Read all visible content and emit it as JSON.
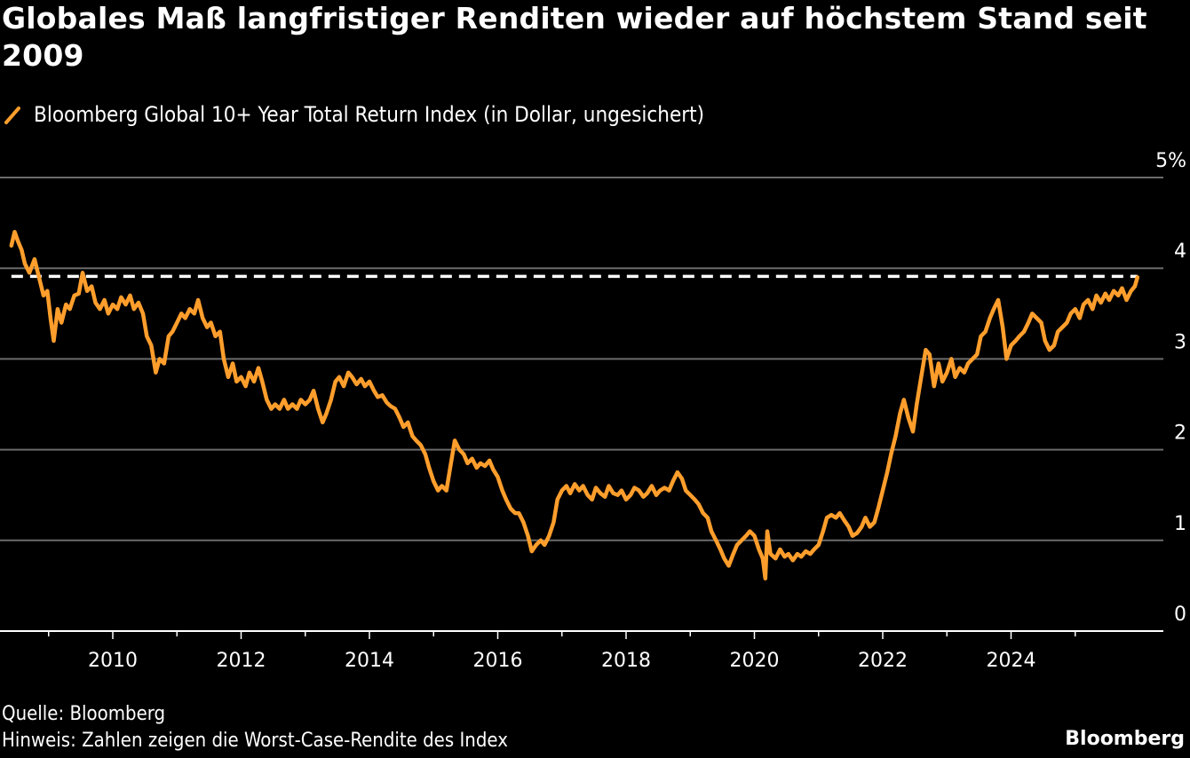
{
  "title": "Globales Maß langfristiger Renditen wieder auf höchstem Stand seit 2009",
  "legend": {
    "label": "Bloomberg Global 10+ Year Total Return Index (in Dollar, ungesichert)",
    "color": "#FF9E2C"
  },
  "footer": {
    "source": "Quelle: Bloomberg",
    "note": "Hinweis: Zahlen zeigen die Worst-Case-Rendite des Index",
    "brand": "Bloomberg"
  },
  "chart_data": {
    "type": "line",
    "title": "Globales Maß langfristiger Renditen wieder auf höchstem Stand seit 2009",
    "xlabel": "",
    "ylabel": "",
    "xlim": [
      2008.42,
      2026.0
    ],
    "ylim": [
      0,
      5
    ],
    "y_unit": "%",
    "y_ticks": [
      0,
      1,
      2,
      3,
      4,
      5
    ],
    "y_tick_labels": [
      "0",
      "1",
      "2",
      "3",
      "4",
      "5%"
    ],
    "x_ticks_labeled": [
      2010,
      2012,
      2014,
      2016,
      2018,
      2020,
      2022,
      2024
    ],
    "x_ticks_minor": [
      2009,
      2011,
      2013,
      2015,
      2017,
      2019,
      2021,
      2023,
      2025
    ],
    "grid": true,
    "y_axis_position": "right",
    "legend_position": "top-left",
    "reference_line": {
      "value": 3.91,
      "style": "dashed",
      "color": "#FFFFFF",
      "from": 2008.42,
      "to": 2025.97
    },
    "series": [
      {
        "name": "Bloomberg Global 10+ Year Total Return Index (in Dollar, ungesichert)",
        "color": "#FF9E2C",
        "points": [
          [
            2008.42,
            4.25
          ],
          [
            2008.47,
            4.4
          ],
          [
            2008.52,
            4.3
          ],
          [
            2008.58,
            4.2
          ],
          [
            2008.63,
            4.05
          ],
          [
            2008.7,
            3.95
          ],
          [
            2008.78,
            4.1
          ],
          [
            2008.85,
            3.9
          ],
          [
            2008.92,
            3.7
          ],
          [
            2008.98,
            3.75
          ],
          [
            2009.03,
            3.45
          ],
          [
            2009.08,
            3.2
          ],
          [
            2009.14,
            3.55
          ],
          [
            2009.2,
            3.4
          ],
          [
            2009.27,
            3.6
          ],
          [
            2009.33,
            3.55
          ],
          [
            2009.4,
            3.7
          ],
          [
            2009.47,
            3.72
          ],
          [
            2009.53,
            3.95
          ],
          [
            2009.6,
            3.75
          ],
          [
            2009.67,
            3.8
          ],
          [
            2009.73,
            3.62
          ],
          [
            2009.8,
            3.55
          ],
          [
            2009.87,
            3.65
          ],
          [
            2009.93,
            3.5
          ],
          [
            2010.0,
            3.6
          ],
          [
            2010.07,
            3.55
          ],
          [
            2010.13,
            3.68
          ],
          [
            2010.2,
            3.6
          ],
          [
            2010.27,
            3.7
          ],
          [
            2010.33,
            3.55
          ],
          [
            2010.4,
            3.62
          ],
          [
            2010.47,
            3.5
          ],
          [
            2010.53,
            3.25
          ],
          [
            2010.6,
            3.15
          ],
          [
            2010.67,
            2.85
          ],
          [
            2010.73,
            3.0
          ],
          [
            2010.8,
            2.95
          ],
          [
            2010.87,
            3.25
          ],
          [
            2010.93,
            3.3
          ],
          [
            2011.0,
            3.4
          ],
          [
            2011.07,
            3.5
          ],
          [
            2011.13,
            3.45
          ],
          [
            2011.2,
            3.55
          ],
          [
            2011.27,
            3.5
          ],
          [
            2011.33,
            3.65
          ],
          [
            2011.4,
            3.45
          ],
          [
            2011.47,
            3.35
          ],
          [
            2011.53,
            3.4
          ],
          [
            2011.6,
            3.25
          ],
          [
            2011.67,
            3.3
          ],
          [
            2011.73,
            3.0
          ],
          [
            2011.8,
            2.8
          ],
          [
            2011.87,
            2.95
          ],
          [
            2011.93,
            2.75
          ],
          [
            2012.0,
            2.8
          ],
          [
            2012.07,
            2.7
          ],
          [
            2012.13,
            2.85
          ],
          [
            2012.2,
            2.75
          ],
          [
            2012.27,
            2.9
          ],
          [
            2012.33,
            2.75
          ],
          [
            2012.4,
            2.55
          ],
          [
            2012.47,
            2.45
          ],
          [
            2012.53,
            2.5
          ],
          [
            2012.6,
            2.45
          ],
          [
            2012.67,
            2.55
          ],
          [
            2012.73,
            2.45
          ],
          [
            2012.8,
            2.5
          ],
          [
            2012.87,
            2.45
          ],
          [
            2012.93,
            2.55
          ],
          [
            2013.0,
            2.5
          ],
          [
            2013.07,
            2.55
          ],
          [
            2013.13,
            2.65
          ],
          [
            2013.2,
            2.45
          ],
          [
            2013.27,
            2.3
          ],
          [
            2013.33,
            2.4
          ],
          [
            2013.4,
            2.55
          ],
          [
            2013.47,
            2.75
          ],
          [
            2013.53,
            2.8
          ],
          [
            2013.6,
            2.7
          ],
          [
            2013.67,
            2.85
          ],
          [
            2013.73,
            2.8
          ],
          [
            2013.8,
            2.72
          ],
          [
            2013.87,
            2.78
          ],
          [
            2013.93,
            2.7
          ],
          [
            2014.0,
            2.75
          ],
          [
            2014.07,
            2.65
          ],
          [
            2014.13,
            2.58
          ],
          [
            2014.2,
            2.6
          ],
          [
            2014.27,
            2.52
          ],
          [
            2014.33,
            2.48
          ],
          [
            2014.4,
            2.45
          ],
          [
            2014.47,
            2.35
          ],
          [
            2014.53,
            2.25
          ],
          [
            2014.6,
            2.3
          ],
          [
            2014.67,
            2.15
          ],
          [
            2014.73,
            2.1
          ],
          [
            2014.8,
            2.05
          ],
          [
            2014.87,
            1.95
          ],
          [
            2014.93,
            1.8
          ],
          [
            2015.0,
            1.65
          ],
          [
            2015.07,
            1.55
          ],
          [
            2015.13,
            1.6
          ],
          [
            2015.2,
            1.55
          ],
          [
            2015.27,
            1.85
          ],
          [
            2015.33,
            2.1
          ],
          [
            2015.4,
            2.0
          ],
          [
            2015.47,
            1.95
          ],
          [
            2015.53,
            1.85
          ],
          [
            2015.6,
            1.9
          ],
          [
            2015.67,
            1.8
          ],
          [
            2015.73,
            1.85
          ],
          [
            2015.8,
            1.82
          ],
          [
            2015.87,
            1.88
          ],
          [
            2015.93,
            1.78
          ],
          [
            2016.0,
            1.7
          ],
          [
            2016.07,
            1.55
          ],
          [
            2016.13,
            1.45
          ],
          [
            2016.2,
            1.35
          ],
          [
            2016.27,
            1.3
          ],
          [
            2016.33,
            1.3
          ],
          [
            2016.4,
            1.2
          ],
          [
            2016.47,
            1.05
          ],
          [
            2016.53,
            0.88
          ],
          [
            2016.6,
            0.95
          ],
          [
            2016.67,
            1.0
          ],
          [
            2016.73,
            0.95
          ],
          [
            2016.8,
            1.05
          ],
          [
            2016.87,
            1.2
          ],
          [
            2016.93,
            1.45
          ],
          [
            2017.0,
            1.55
          ],
          [
            2017.07,
            1.6
          ],
          [
            2017.13,
            1.52
          ],
          [
            2017.2,
            1.62
          ],
          [
            2017.27,
            1.55
          ],
          [
            2017.33,
            1.6
          ],
          [
            2017.4,
            1.5
          ],
          [
            2017.47,
            1.45
          ],
          [
            2017.53,
            1.58
          ],
          [
            2017.6,
            1.52
          ],
          [
            2017.67,
            1.48
          ],
          [
            2017.73,
            1.6
          ],
          [
            2017.8,
            1.52
          ],
          [
            2017.87,
            1.5
          ],
          [
            2017.93,
            1.55
          ],
          [
            2018.0,
            1.45
          ],
          [
            2018.07,
            1.5
          ],
          [
            2018.13,
            1.58
          ],
          [
            2018.2,
            1.55
          ],
          [
            2018.27,
            1.48
          ],
          [
            2018.33,
            1.52
          ],
          [
            2018.4,
            1.6
          ],
          [
            2018.47,
            1.5
          ],
          [
            2018.53,
            1.55
          ],
          [
            2018.6,
            1.58
          ],
          [
            2018.67,
            1.55
          ],
          [
            2018.73,
            1.65
          ],
          [
            2018.8,
            1.75
          ],
          [
            2018.87,
            1.68
          ],
          [
            2018.93,
            1.55
          ],
          [
            2019.0,
            1.5
          ],
          [
            2019.07,
            1.45
          ],
          [
            2019.13,
            1.4
          ],
          [
            2019.2,
            1.3
          ],
          [
            2019.27,
            1.25
          ],
          [
            2019.33,
            1.1
          ],
          [
            2019.4,
            1.0
          ],
          [
            2019.47,
            0.9
          ],
          [
            2019.53,
            0.8
          ],
          [
            2019.6,
            0.72
          ],
          [
            2019.67,
            0.85
          ],
          [
            2019.73,
            0.95
          ],
          [
            2019.8,
            1.0
          ],
          [
            2019.87,
            1.05
          ],
          [
            2019.93,
            1.1
          ],
          [
            2020.0,
            1.05
          ],
          [
            2020.07,
            0.9
          ],
          [
            2020.13,
            0.8
          ],
          [
            2020.17,
            0.58
          ],
          [
            2020.2,
            1.1
          ],
          [
            2020.25,
            0.85
          ],
          [
            2020.33,
            0.8
          ],
          [
            2020.4,
            0.9
          ],
          [
            2020.47,
            0.82
          ],
          [
            2020.53,
            0.85
          ],
          [
            2020.6,
            0.78
          ],
          [
            2020.67,
            0.85
          ],
          [
            2020.73,
            0.82
          ],
          [
            2020.8,
            0.88
          ],
          [
            2020.87,
            0.85
          ],
          [
            2020.93,
            0.9
          ],
          [
            2021.0,
            0.95
          ],
          [
            2021.07,
            1.1
          ],
          [
            2021.13,
            1.25
          ],
          [
            2021.2,
            1.28
          ],
          [
            2021.27,
            1.25
          ],
          [
            2021.33,
            1.3
          ],
          [
            2021.4,
            1.22
          ],
          [
            2021.47,
            1.15
          ],
          [
            2021.53,
            1.05
          ],
          [
            2021.6,
            1.08
          ],
          [
            2021.67,
            1.15
          ],
          [
            2021.73,
            1.25
          ],
          [
            2021.8,
            1.15
          ],
          [
            2021.87,
            1.2
          ],
          [
            2021.93,
            1.35
          ],
          [
            2022.0,
            1.55
          ],
          [
            2022.07,
            1.75
          ],
          [
            2022.13,
            1.95
          ],
          [
            2022.2,
            2.15
          ],
          [
            2022.27,
            2.4
          ],
          [
            2022.33,
            2.55
          ],
          [
            2022.4,
            2.35
          ],
          [
            2022.47,
            2.2
          ],
          [
            2022.53,
            2.5
          ],
          [
            2022.6,
            2.8
          ],
          [
            2022.67,
            3.1
          ],
          [
            2022.73,
            3.05
          ],
          [
            2022.8,
            2.7
          ],
          [
            2022.87,
            2.95
          ],
          [
            2022.93,
            2.75
          ],
          [
            2023.0,
            2.85
          ],
          [
            2023.07,
            3.0
          ],
          [
            2023.13,
            2.8
          ],
          [
            2023.2,
            2.9
          ],
          [
            2023.27,
            2.85
          ],
          [
            2023.33,
            2.95
          ],
          [
            2023.4,
            3.0
          ],
          [
            2023.47,
            3.05
          ],
          [
            2023.53,
            3.25
          ],
          [
            2023.6,
            3.3
          ],
          [
            2023.67,
            3.45
          ],
          [
            2023.73,
            3.55
          ],
          [
            2023.8,
            3.65
          ],
          [
            2023.87,
            3.35
          ],
          [
            2023.93,
            3.0
          ],
          [
            2024.0,
            3.15
          ],
          [
            2024.07,
            3.2
          ],
          [
            2024.13,
            3.25
          ],
          [
            2024.2,
            3.3
          ],
          [
            2024.27,
            3.4
          ],
          [
            2024.33,
            3.5
          ],
          [
            2024.4,
            3.45
          ],
          [
            2024.47,
            3.4
          ],
          [
            2024.53,
            3.2
          ],
          [
            2024.6,
            3.1
          ],
          [
            2024.67,
            3.15
          ],
          [
            2024.73,
            3.3
          ],
          [
            2024.8,
            3.35
          ],
          [
            2024.87,
            3.4
          ],
          [
            2024.93,
            3.5
          ],
          [
            2025.0,
            3.55
          ],
          [
            2025.07,
            3.45
          ],
          [
            2025.13,
            3.6
          ],
          [
            2025.2,
            3.65
          ],
          [
            2025.27,
            3.55
          ],
          [
            2025.33,
            3.7
          ],
          [
            2025.4,
            3.62
          ],
          [
            2025.47,
            3.72
          ],
          [
            2025.53,
            3.65
          ],
          [
            2025.6,
            3.75
          ],
          [
            2025.67,
            3.7
          ],
          [
            2025.73,
            3.78
          ],
          [
            2025.8,
            3.65
          ],
          [
            2025.87,
            3.75
          ],
          [
            2025.93,
            3.8
          ],
          [
            2025.97,
            3.9
          ]
        ]
      }
    ]
  }
}
